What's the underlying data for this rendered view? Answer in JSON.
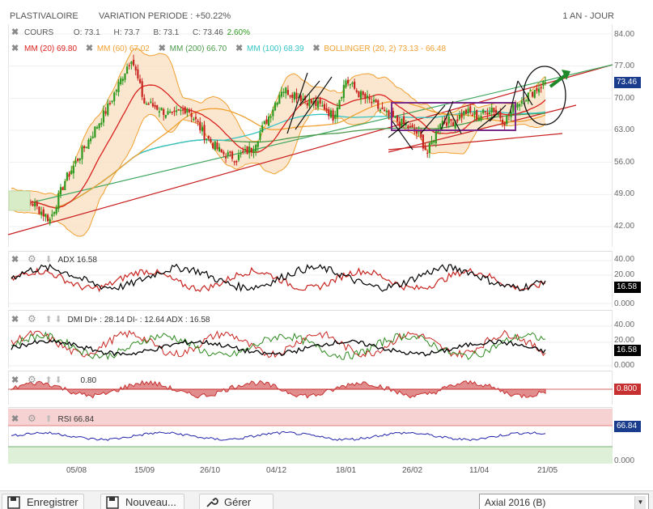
{
  "header": {
    "title": "PLASTIVALOIRE",
    "variation": "VARIATION PERIODE : +50.22%",
    "period": "1 AN - JOUR"
  },
  "main_chart": {
    "cours_label": "COURS",
    "open": "O: 73.1",
    "high": "H: 73.7",
    "low": "B: 73.1",
    "close": "C: 73.46",
    "change": "2.60%",
    "mm20": "MM (20) 69.80",
    "mm60": "MM (60) 67.02",
    "mm200": "MM (200) 66.70",
    "mm100": "MM (100) 68.39",
    "bollinger": "BOLLINGER (20, 2) 73.13 - 66.48",
    "last_price": "73.46",
    "y_ticks": [
      "84.00",
      "77.00",
      "70.00",
      "63.00",
      "56.00",
      "49.00",
      "42.00"
    ]
  },
  "adx_panel": {
    "label": "ADX 16.58",
    "value": "16.58",
    "ticks": [
      "40.00",
      "20.00",
      "0.000"
    ]
  },
  "dmi_panel": {
    "label": "DMI DI+ : 28.14 DI- : 12.64 ADX : 16.58",
    "value": "16.58",
    "ticks": [
      "40.00",
      "20.00",
      "0.000"
    ]
  },
  "momentum_panel": {
    "label": "0.80",
    "value": "0.800"
  },
  "rsi_panel": {
    "label": "RSI 66.84",
    "value": "66.84",
    "ticks": [
      "0.000"
    ]
  },
  "x_axis": [
    "05/08",
    "15/09",
    "26/10",
    "04/12",
    "18/01",
    "26/02",
    "11/04",
    "21/05"
  ],
  "footer": {
    "save": "Enregistrer",
    "new": "Nouveau...",
    "manage": "Gérer",
    "template": "Axial 2016 (B)"
  },
  "colors": {
    "candle_up": "#2e9a1f",
    "candle_down": "#c8241f",
    "mm20": "#d9211e",
    "mm60": "#f0a030",
    "mm100": "#36c5c5",
    "mm200": "#4a9a4a",
    "bollinger_fill": "#f9dfbf",
    "trend_red": "#c81e1e",
    "trend_green": "#40a860",
    "rect_purple": "#7a2a8a",
    "price_box": "#1a3c8c",
    "adx_black": "#000000",
    "di_plus": "#2e8a1f",
    "di_minus": "#c8241f",
    "momentum": "#c73030",
    "rsi": "#2222aa",
    "rsi_over": "#f7d2d2",
    "rsi_under": "#dff0d8"
  }
}
